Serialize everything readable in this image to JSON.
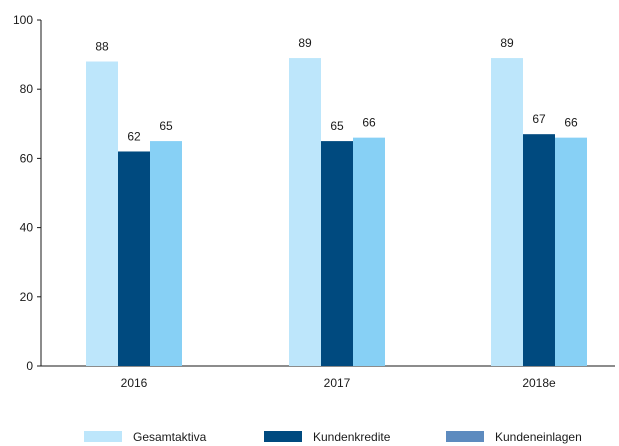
{
  "chart_data": {
    "type": "bar",
    "categories": [
      "2016",
      "2017",
      "2018e"
    ],
    "series": [
      {
        "name": "Gesamtaktiva",
        "values": [
          88,
          89,
          89
        ],
        "value_labels": [
          "88",
          "89",
          "89"
        ],
        "color": "#bde6fb"
      },
      {
        "name": "Kundenkredite",
        "values": [
          62,
          65,
          67
        ],
        "value_labels": [
          "62",
          "65",
          "67"
        ],
        "color": "#004a7f"
      },
      {
        "name": "Kundeneinlagen",
        "values": [
          65,
          66,
          66
        ],
        "value_labels": [
          "65",
          "66",
          "66"
        ],
        "color": "#87d0f5",
        "legend_color": "#5d8bbf"
      }
    ],
    "y_ticks": [
      0,
      20,
      40,
      60,
      80,
      100
    ],
    "y_tick_labels": [
      "0",
      "20",
      "40",
      "60",
      "80",
      "100"
    ],
    "ylim": [
      0,
      100
    ],
    "grid": false,
    "legend_position": "bottom",
    "title": "",
    "xlabel": "",
    "ylabel": ""
  }
}
